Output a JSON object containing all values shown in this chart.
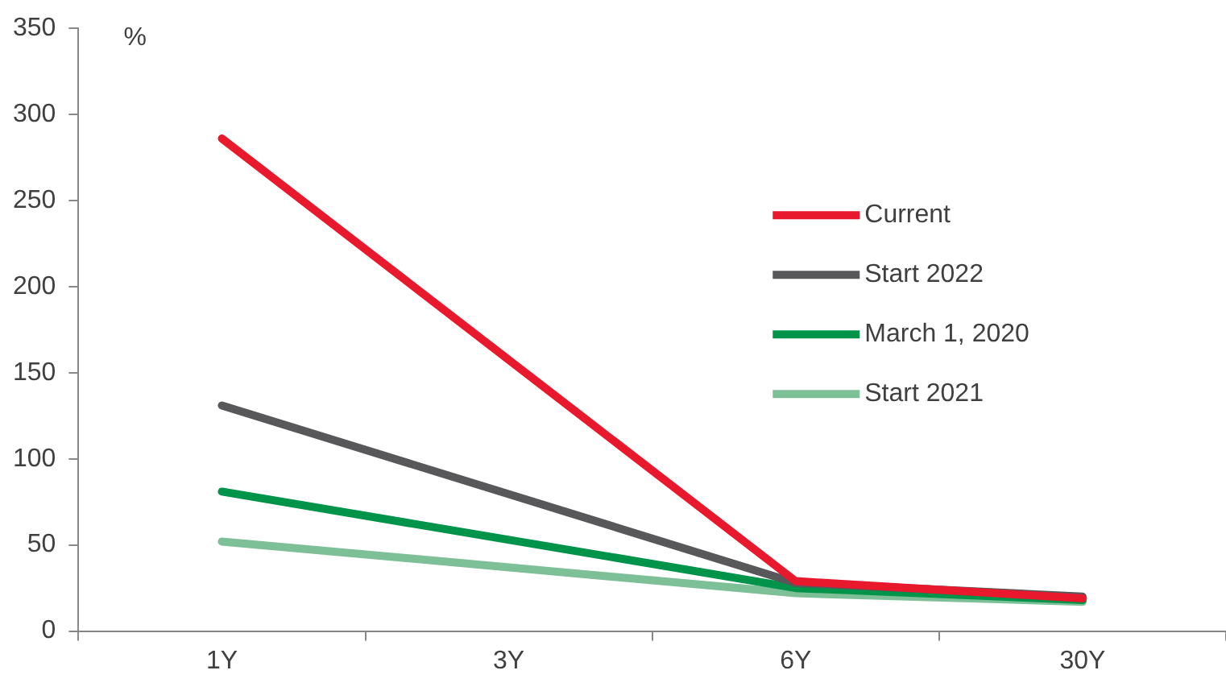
{
  "chart_data": {
    "type": "line",
    "ylabel": "%",
    "categories": [
      "1Y",
      "3Y",
      "6Y",
      "30Y"
    ],
    "series": [
      {
        "name": "Current",
        "color": "#e8192c",
        "values": [
          286,
          null,
          29,
          19
        ]
      },
      {
        "name": "Start 2022",
        "color": "#58585a",
        "values": [
          131,
          null,
          28,
          20
        ]
      },
      {
        "name": "March 1, 2020",
        "color": "#00934a",
        "values": [
          81,
          null,
          25,
          18
        ]
      },
      {
        "name": "Start 2021",
        "color": "#7dbf97",
        "values": [
          52,
          null,
          22,
          17
        ]
      }
    ],
    "ylim": [
      0,
      350
    ],
    "yticks": [
      0,
      50,
      100,
      150,
      200,
      250,
      300,
      350
    ],
    "grid": false,
    "legend": "right",
    "marker": "none",
    "line_style": "solid"
  }
}
